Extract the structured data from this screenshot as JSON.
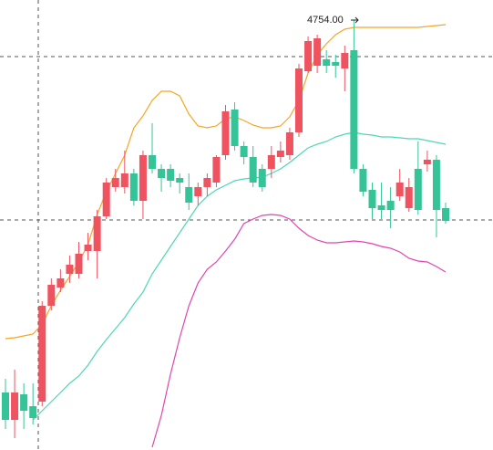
{
  "chart_data": {
    "type": "candlestick",
    "annotation": "4754.00",
    "up_color": "#ef5360",
    "down_color": "#35c497",
    "ylim": [
      4283,
      4776
    ],
    "candles": {
      "open": [
        4346,
        4316,
        4344,
        4331,
        4336,
        4441,
        4461,
        4476,
        4476,
        4501,
        4501,
        4539,
        4571,
        4571,
        4586,
        4556,
        4606,
        4591,
        4591,
        4581,
        4571,
        4561,
        4571,
        4576,
        4606,
        4656,
        4616,
        4604,
        4591,
        4591,
        4604,
        4606,
        4631,
        4698,
        4704,
        4711,
        4708,
        4701,
        4721,
        4591,
        4568,
        4551,
        4556,
        4561,
        4548,
        4591,
        4596,
        4601,
        4548
      ],
      "high": [
        4361,
        4371,
        4356,
        4356,
        4446,
        4471,
        4481,
        4496,
        4511,
        4521,
        4546,
        4581,
        4591,
        4611,
        4591,
        4611,
        4641,
        4596,
        4596,
        4586,
        4586,
        4576,
        4586,
        4606,
        4661,
        4664,
        4621,
        4616,
        4596,
        4616,
        4621,
        4636,
        4706,
        4736,
        4738,
        4721,
        4716,
        4726,
        4754,
        4596,
        4576,
        4576,
        4571,
        4591,
        4581,
        4621,
        4611,
        4606,
        4554
      ],
      "low": [
        4306,
        4296,
        4306,
        4311,
        4331,
        4436,
        4456,
        4466,
        4471,
        4491,
        4471,
        4536,
        4566,
        4564,
        4551,
        4536,
        4586,
        4566,
        4571,
        4564,
        4546,
        4551,
        4561,
        4571,
        4601,
        4611,
        4596,
        4571,
        4566,
        4581,
        4598,
        4601,
        4626,
        4696,
        4696,
        4696,
        4691,
        4676,
        4586,
        4561,
        4536,
        4536,
        4526,
        4556,
        4544,
        4541,
        4588,
        4516,
        4531
      ],
      "close": [
        4316,
        4346,
        4326,
        4318,
        4441,
        4464,
        4471,
        4486,
        4498,
        4508,
        4539,
        4576,
        4581,
        4586,
        4556,
        4606,
        4591,
        4581,
        4578,
        4576,
        4554,
        4571,
        4581,
        4604,
        4654,
        4616,
        4604,
        4576,
        4571,
        4606,
        4611,
        4631,
        4701,
        4731,
        4734,
        4704,
        4704,
        4718,
        4591,
        4566,
        4548,
        4546,
        4546,
        4576,
        4571,
        4546,
        4601,
        4546,
        4534
      ]
    },
    "series": [
      {
        "color": "#f5a623",
        "values": [
          4405,
          4406,
          4408,
          4410,
          4421,
          4441,
          4458,
          4473,
          4489,
          4508,
          4541,
          4566,
          4586,
          4606,
          4636,
          4649,
          4666,
          4676,
          4676,
          4671,
          4651,
          4638,
          4636,
          4638,
          4646,
          4648,
          4644,
          4639,
          4636,
          4636,
          4638,
          4648,
          4666,
          4696,
          4716,
          4728,
          4738,
          4744,
          4746,
          4746,
          4746,
          4746,
          4746,
          4746,
          4746,
          4746,
          4747,
          4748,
          4749
        ]
      },
      {
        "color": "#4fd6b6",
        "values": [
          null,
          null,
          null,
          4316,
          4326,
          4336,
          4346,
          4356,
          4364,
          4376,
          4391,
          4404,
          4416,
          4428,
          4443,
          4456,
          4476,
          4491,
          4506,
          4521,
          4536,
          4551,
          4561,
          4568,
          4573,
          4578,
          4580,
          4581,
          4582,
          4586,
          4591,
          4598,
          4606,
          4614,
          4618,
          4621,
          4626,
          4629,
          4631,
          4629,
          4628,
          4626,
          4626,
          4625,
          4624,
          4624,
          4622,
          4620,
          4618
        ]
      },
      {
        "color": "#e044b4",
        "values": [
          null,
          null,
          null,
          null,
          null,
          null,
          null,
          null,
          null,
          null,
          null,
          null,
          null,
          null,
          null,
          null,
          4286,
          4321,
          4366,
          4406,
          4441,
          4466,
          4481,
          4489,
          4501,
          4514,
          4531,
          4536,
          4540,
          4541,
          4540,
          4536,
          4526,
          4518,
          4513,
          4510,
          4510,
          4511,
          4512,
          4511,
          4509,
          4506,
          4504,
          4500,
          4493,
          4490,
          4489,
          4484,
          4478
        ]
      }
    ]
  }
}
